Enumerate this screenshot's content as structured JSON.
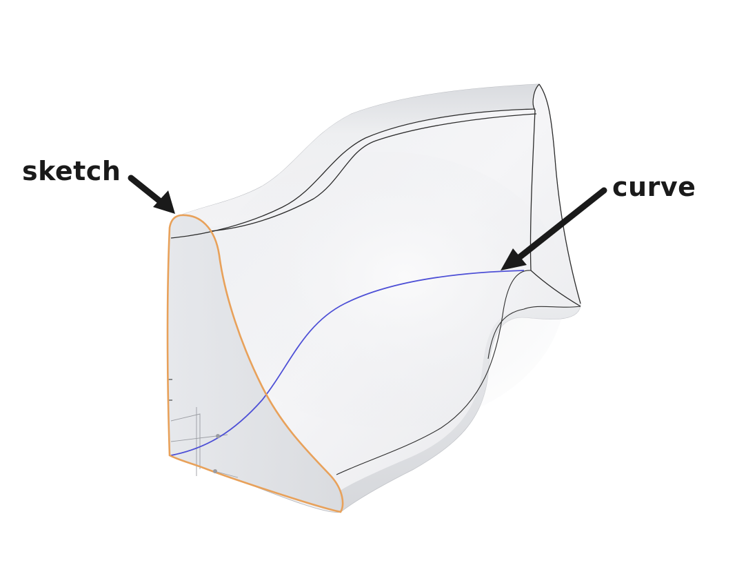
{
  "labels": {
    "sketch": "sketch",
    "curve": "curve"
  },
  "colors": {
    "background": "#ffffff",
    "surface_light": "#f4f4f5",
    "surface_mid": "#e3e4e7",
    "surface_dark": "#cfd1d5",
    "edge": "#2b2b2b",
    "sketch_profile": "#e8a15a",
    "guide_curve": "#4d4fd6",
    "arrow": "#1a1a1a"
  }
}
